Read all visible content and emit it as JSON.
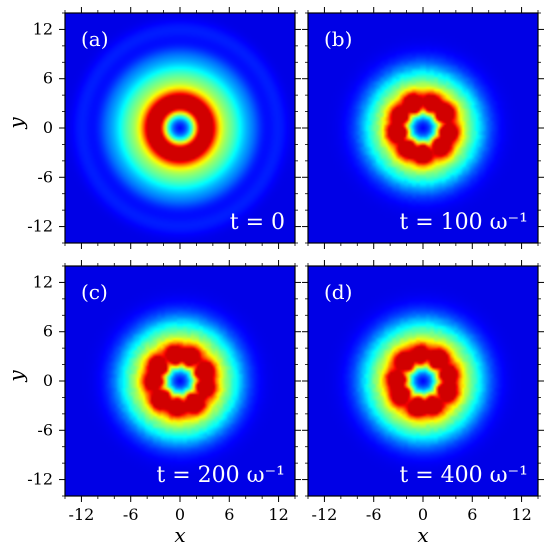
{
  "chart_data": [
    {
      "type": "heatmap",
      "panel": "(a)",
      "time_label": "t = 0",
      "xlim": [
        -14,
        14
      ],
      "ylim": [
        -14,
        14
      ],
      "ring": {
        "radius": 3.0,
        "width": 1.5,
        "halo_radius": 5.5,
        "halo_width": 3.0,
        "fragmented": false,
        "outer_ring_radius": 12
      },
      "xlabel": "",
      "ylabel": "y",
      "show_xticklabels": false,
      "show_yticklabels": true
    },
    {
      "type": "heatmap",
      "panel": "(b)",
      "time_label": "t = 100 ω⁻¹",
      "xlim": [
        -14,
        14
      ],
      "ylim": [
        -14,
        14
      ],
      "ring": {
        "radius": 3.0,
        "width": 1.4,
        "halo_radius": 5.0,
        "halo_width": 2.8,
        "fragmented": true
      },
      "xlabel": "",
      "ylabel": "",
      "show_xticklabels": false,
      "show_yticklabels": false
    },
    {
      "type": "heatmap",
      "panel": "(c)",
      "time_label": "t = 200 ω⁻¹",
      "xlim": [
        -14,
        14
      ],
      "ylim": [
        -14,
        14
      ],
      "ring": {
        "radius": 3.0,
        "width": 1.5,
        "halo_radius": 5.2,
        "halo_width": 2.8,
        "fragmented": true
      },
      "xlabel": "x",
      "ylabel": "y",
      "show_xticklabels": true,
      "show_yticklabels": true
    },
    {
      "type": "heatmap",
      "panel": "(d)",
      "time_label": "t = 400 ω⁻¹",
      "xlim": [
        -14,
        14
      ],
      "ylim": [
        -14,
        14
      ],
      "ring": {
        "radius": 3.0,
        "width": 1.5,
        "halo_radius": 5.2,
        "halo_width": 2.8,
        "fragmented": true
      },
      "xlabel": "x",
      "ylabel": "",
      "show_xticklabels": true,
      "show_yticklabels": false
    }
  ],
  "ticks": [
    "-12",
    "-6",
    "0",
    "6",
    "12"
  ],
  "tick_values": [
    -12,
    -6,
    0,
    6,
    12
  ],
  "colormap": "jet"
}
